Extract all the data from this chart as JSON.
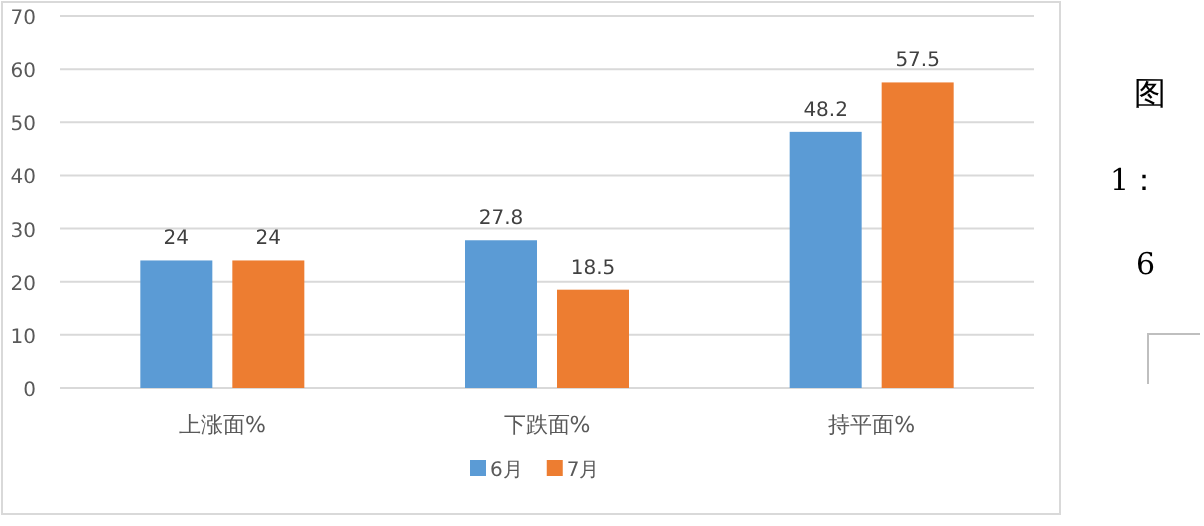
{
  "chart_data": {
    "type": "bar",
    "categories": [
      "上涨面%",
      "下跌面%",
      "持平面%"
    ],
    "series": [
      {
        "name": "6月",
        "color": "#5b9bd5",
        "values": [
          24,
          27.8,
          48.2
        ]
      },
      {
        "name": "7月",
        "color": "#ed7d31",
        "values": [
          24,
          18.5,
          57.5
        ]
      }
    ],
    "ylim": [
      0,
      70
    ],
    "yticks": [
      0,
      10,
      20,
      30,
      40,
      50,
      60,
      70
    ],
    "grid": "y",
    "legend": "bottom",
    "data_labels": true,
    "annotations": [
      "图",
      "1：",
      "6"
    ]
  }
}
